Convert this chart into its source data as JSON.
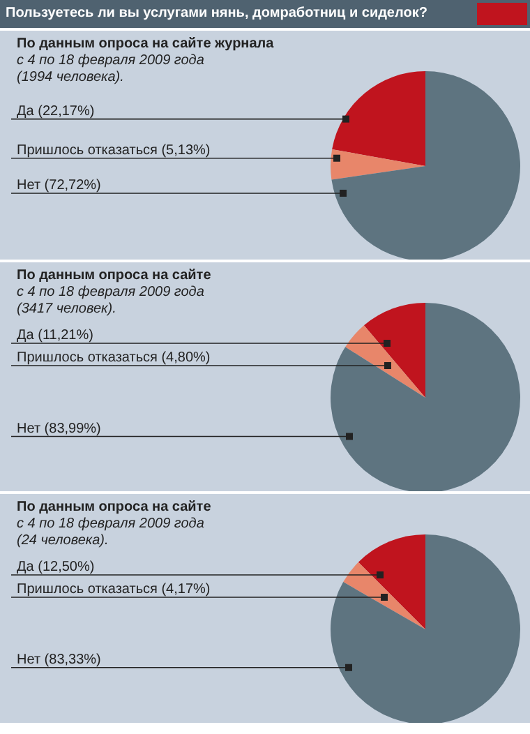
{
  "chart_data": [
    {
      "type": "pie",
      "title": "Пользуетесь ли вы услугами нянь, домработниц и сиделок?",
      "annotations": [
        "По данным опроса на сайте журнала",
        "с 4 по 18 февраля 2009 года",
        "(1994 человека)."
      ],
      "categories": [
        "Да",
        "Пришлось отказаться",
        "Нет"
      ],
      "values": [
        22.17,
        5.13,
        72.72
      ],
      "value_labels": [
        "(22,17%)",
        "(5,13%)",
        "(72,72%)"
      ],
      "colors": [
        "#c0141e",
        "#e8866a",
        "#5e7480"
      ],
      "legend": false
    },
    {
      "type": "pie",
      "annotations": [
        "По данным опроса на сайте",
        "с 4 по 18 февраля 2009 года",
        "(3417 человек)."
      ],
      "categories": [
        "Да",
        "Пришлось отказаться",
        "Нет"
      ],
      "values": [
        11.21,
        4.8,
        83.99
      ],
      "value_labels": [
        "(11,21%)",
        "(4,80%)",
        "(83,99%)"
      ],
      "colors": [
        "#c0141e",
        "#e8866a",
        "#5e7480"
      ],
      "legend": false
    },
    {
      "type": "pie",
      "annotations": [
        "По данным опроса на сайте",
        "с 4 по 18 февраля 2009 года",
        "(24 человека)."
      ],
      "categories": [
        "Да",
        "Пришлось отказаться",
        "Нет"
      ],
      "values": [
        12.5,
        4.17,
        83.33
      ],
      "value_labels": [
        "(12,50%)",
        "(4,17%)",
        "(83,33%)"
      ],
      "colors": [
        "#c0141e",
        "#e8866a",
        "#5e7480"
      ],
      "legend": false
    }
  ]
}
